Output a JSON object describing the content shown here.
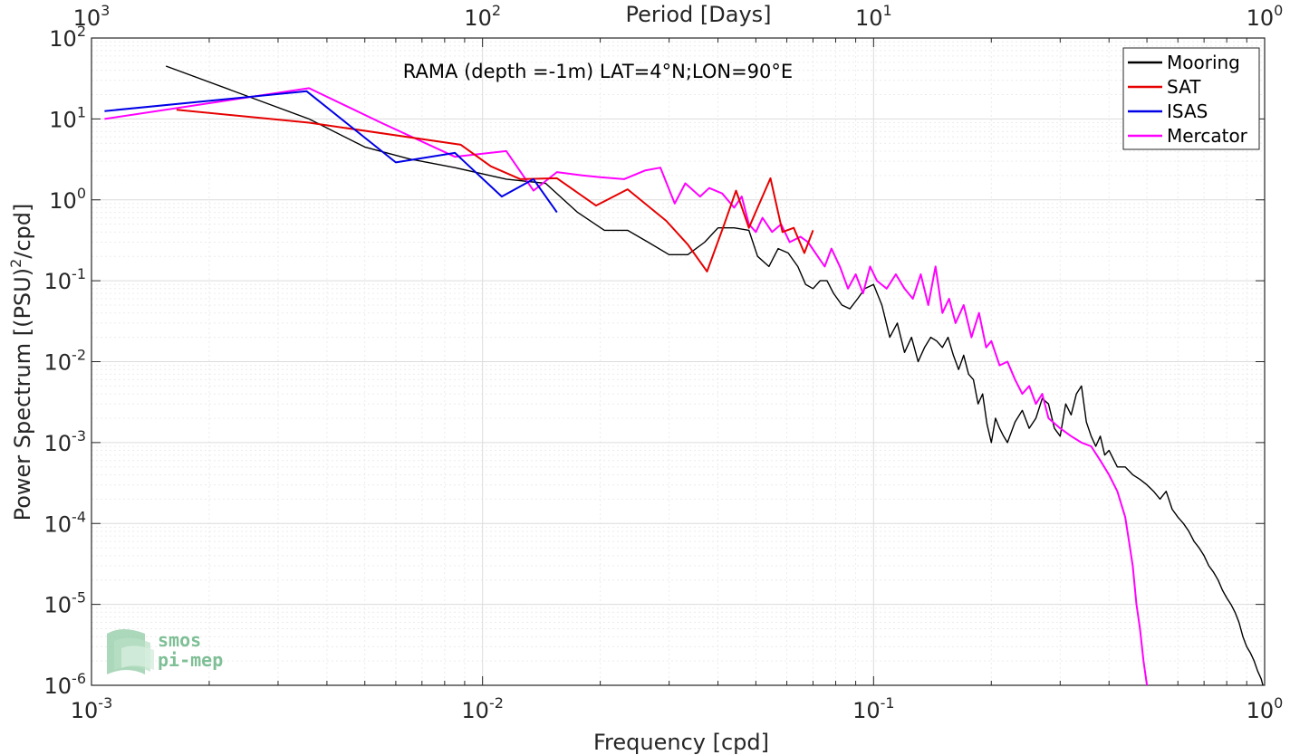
{
  "chart_data": {
    "type": "line",
    "title": "RAMA (depth =-1m) LAT=4°N;LON=90°E",
    "xlabel": "Frequency [cpd]",
    "ylabel": "Power Spectrum [(PSU)²/cpd]",
    "top_xlabel": "Period [Days]",
    "xscale": "log",
    "yscale": "log",
    "xlim": [
      0.001,
      1
    ],
    "ylim": [
      1e-06,
      100
    ],
    "grid": true,
    "legend_position": "top-right",
    "x_tick_labels": [
      {
        "base": "10",
        "exp": "-3"
      },
      {
        "base": "10",
        "exp": "-2"
      },
      {
        "base": "10",
        "exp": "-1"
      },
      {
        "base": "10",
        "exp": "0"
      }
    ],
    "top_tick_labels": [
      {
        "base": "10",
        "exp": "3"
      },
      {
        "base": "10",
        "exp": "2"
      },
      {
        "base": "10",
        "exp": "1"
      },
      {
        "base": "10",
        "exp": "0"
      }
    ],
    "y_tick_labels": [
      {
        "base": "10",
        "exp": "-6"
      },
      {
        "base": "10",
        "exp": "-5"
      },
      {
        "base": "10",
        "exp": "-4"
      },
      {
        "base": "10",
        "exp": "-3"
      },
      {
        "base": "10",
        "exp": "-2"
      },
      {
        "base": "10",
        "exp": "-1"
      },
      {
        "base": "10",
        "exp": "0"
      },
      {
        "base": "10",
        "exp": "1"
      },
      {
        "base": "10",
        "exp": "2"
      }
    ],
    "series": [
      {
        "name": "Mooring",
        "color": "#000000",
        "points": [
          [
            0.00155,
            45
          ],
          [
            0.0036,
            10
          ],
          [
            0.005,
            4.5
          ],
          [
            0.0065,
            3.2
          ],
          [
            0.0085,
            2.5
          ],
          [
            0.0115,
            1.8
          ],
          [
            0.0145,
            1.6
          ],
          [
            0.0175,
            0.7
          ],
          [
            0.0205,
            0.42
          ],
          [
            0.0235,
            0.42
          ],
          [
            0.0265,
            0.3
          ],
          [
            0.03,
            0.21
          ],
          [
            0.0335,
            0.21
          ],
          [
            0.037,
            0.3
          ],
          [
            0.04,
            0.45
          ],
          [
            0.044,
            0.45
          ],
          [
            0.048,
            0.42
          ],
          [
            0.0505,
            0.2
          ],
          [
            0.054,
            0.15
          ],
          [
            0.057,
            0.25
          ],
          [
            0.0605,
            0.22
          ],
          [
            0.064,
            0.15
          ],
          [
            0.067,
            0.09
          ],
          [
            0.07,
            0.08
          ],
          [
            0.073,
            0.1
          ],
          [
            0.076,
            0.1
          ],
          [
            0.079,
            0.07
          ],
          [
            0.083,
            0.05
          ],
          [
            0.087,
            0.045
          ],
          [
            0.091,
            0.06
          ],
          [
            0.095,
            0.08
          ],
          [
            0.1,
            0.09
          ],
          [
            0.105,
            0.05
          ],
          [
            0.11,
            0.02
          ],
          [
            0.115,
            0.03
          ],
          [
            0.12,
            0.013
          ],
          [
            0.125,
            0.02
          ],
          [
            0.13,
            0.01
          ],
          [
            0.135,
            0.015
          ],
          [
            0.14,
            0.02
          ],
          [
            0.145,
            0.018
          ],
          [
            0.15,
            0.015
          ],
          [
            0.155,
            0.02
          ],
          [
            0.16,
            0.012
          ],
          [
            0.165,
            0.008
          ],
          [
            0.17,
            0.012
          ],
          [
            0.175,
            0.007
          ],
          [
            0.18,
            0.006
          ],
          [
            0.185,
            0.003
          ],
          [
            0.19,
            0.004
          ],
          [
            0.195,
            0.0017
          ],
          [
            0.2,
            0.001
          ],
          [
            0.205,
            0.002
          ],
          [
            0.21,
            0.0015
          ],
          [
            0.215,
            0.0012
          ],
          [
            0.22,
            0.001
          ],
          [
            0.23,
            0.0018
          ],
          [
            0.24,
            0.0025
          ],
          [
            0.25,
            0.0015
          ],
          [
            0.26,
            0.002
          ],
          [
            0.27,
            0.0035
          ],
          [
            0.28,
            0.003
          ],
          [
            0.29,
            0.0015
          ],
          [
            0.3,
            0.0012
          ],
          [
            0.31,
            0.003
          ],
          [
            0.32,
            0.0022
          ],
          [
            0.33,
            0.004
          ],
          [
            0.34,
            0.005
          ],
          [
            0.35,
            0.0018
          ],
          [
            0.36,
            0.0012
          ],
          [
            0.37,
            0.0009
          ],
          [
            0.38,
            0.0012
          ],
          [
            0.39,
            0.0007
          ],
          [
            0.4,
            0.0008
          ],
          [
            0.42,
            0.0005
          ],
          [
            0.44,
            0.0005
          ],
          [
            0.46,
            0.0004
          ],
          [
            0.48,
            0.00035
          ],
          [
            0.5,
            0.0003
          ],
          [
            0.52,
            0.00025
          ],
          [
            0.54,
            0.0002
          ],
          [
            0.56,
            0.00025
          ],
          [
            0.58,
            0.00015
          ],
          [
            0.6,
            0.00012
          ],
          [
            0.62,
            0.0001
          ],
          [
            0.64,
            8e-05
          ],
          [
            0.66,
            6e-05
          ],
          [
            0.68,
            5e-05
          ],
          [
            0.7,
            4e-05
          ],
          [
            0.72,
            3e-05
          ],
          [
            0.74,
            2.5e-05
          ],
          [
            0.76,
            2e-05
          ],
          [
            0.78,
            1.5e-05
          ],
          [
            0.8,
            1.2e-05
          ],
          [
            0.82,
            1e-05
          ],
          [
            0.84,
            8e-06
          ],
          [
            0.86,
            6e-06
          ],
          [
            0.88,
            4e-06
          ],
          [
            0.9,
            3e-06
          ],
          [
            0.92,
            2.5e-06
          ],
          [
            0.94,
            2e-06
          ],
          [
            0.96,
            1.5e-06
          ],
          [
            0.98,
            1.2e-06
          ],
          [
            0.99,
            1e-06
          ]
        ]
      },
      {
        "name": "SAT",
        "color": "#e60000",
        "points": [
          [
            0.00165,
            13
          ],
          [
            0.0036,
            9
          ],
          [
            0.0088,
            4.8
          ],
          [
            0.0105,
            2.6
          ],
          [
            0.0125,
            1.8
          ],
          [
            0.0155,
            1.85
          ],
          [
            0.0195,
            0.85
          ],
          [
            0.0235,
            1.35
          ],
          [
            0.0295,
            0.55
          ],
          [
            0.0335,
            0.28
          ],
          [
            0.0375,
            0.13
          ],
          [
            0.0415,
            0.5
          ],
          [
            0.0445,
            1.3
          ],
          [
            0.048,
            0.45
          ],
          [
            0.0505,
            0.8
          ],
          [
            0.0545,
            1.85
          ],
          [
            0.0585,
            0.4
          ],
          [
            0.0625,
            0.45
          ],
          [
            0.0665,
            0.22
          ],
          [
            0.07,
            0.42
          ]
        ]
      },
      {
        "name": "ISAS",
        "color": "#0000e6",
        "points": [
          [
            0.00108,
            12.5
          ],
          [
            0.00355,
            22
          ],
          [
            0.006,
            2.9
          ],
          [
            0.0085,
            3.8
          ],
          [
            0.0112,
            1.1
          ],
          [
            0.0135,
            1.8
          ],
          [
            0.0155,
            0.7
          ]
        ]
      },
      {
        "name": "Mercator",
        "color": "#ff00ff",
        "points": [
          [
            0.00108,
            10
          ],
          [
            0.0036,
            24
          ],
          [
            0.0055,
            9
          ],
          [
            0.0085,
            3.4
          ],
          [
            0.0115,
            4
          ],
          [
            0.0135,
            1.3
          ],
          [
            0.0155,
            2.2
          ],
          [
            0.018,
            2
          ],
          [
            0.02,
            1.9
          ],
          [
            0.023,
            1.8
          ],
          [
            0.026,
            2.3
          ],
          [
            0.0285,
            2.5
          ],
          [
            0.031,
            0.9
          ],
          [
            0.033,
            1.6
          ],
          [
            0.036,
            1.1
          ],
          [
            0.038,
            1.4
          ],
          [
            0.041,
            1.2
          ],
          [
            0.044,
            0.8
          ],
          [
            0.046,
            1.1
          ],
          [
            0.048,
            0.5
          ],
          [
            0.05,
            0.4
          ],
          [
            0.052,
            0.6
          ],
          [
            0.055,
            0.4
          ],
          [
            0.058,
            0.5
          ],
          [
            0.061,
            0.3
          ],
          [
            0.065,
            0.35
          ],
          [
            0.068,
            0.3
          ],
          [
            0.072,
            0.2
          ],
          [
            0.075,
            0.15
          ],
          [
            0.078,
            0.25
          ],
          [
            0.082,
            0.15
          ],
          [
            0.086,
            0.08
          ],
          [
            0.09,
            0.12
          ],
          [
            0.094,
            0.07
          ],
          [
            0.098,
            0.15
          ],
          [
            0.102,
            0.1
          ],
          [
            0.108,
            0.08
          ],
          [
            0.114,
            0.12
          ],
          [
            0.12,
            0.08
          ],
          [
            0.126,
            0.06
          ],
          [
            0.132,
            0.12
          ],
          [
            0.138,
            0.05
          ],
          [
            0.144,
            0.15
          ],
          [
            0.15,
            0.04
          ],
          [
            0.156,
            0.06
          ],
          [
            0.162,
            0.03
          ],
          [
            0.17,
            0.05
          ],
          [
            0.178,
            0.02
          ],
          [
            0.186,
            0.04
          ],
          [
            0.194,
            0.015
          ],
          [
            0.2,
            0.018
          ],
          [
            0.21,
            0.009
          ],
          [
            0.22,
            0.01
          ],
          [
            0.23,
            0.006
          ],
          [
            0.24,
            0.004
          ],
          [
            0.25,
            0.005
          ],
          [
            0.26,
            0.003
          ],
          [
            0.27,
            0.004
          ],
          [
            0.28,
            0.002
          ],
          [
            0.3,
            0.0015
          ],
          [
            0.32,
            0.0012
          ],
          [
            0.34,
            0.001
          ],
          [
            0.36,
            0.0009
          ],
          [
            0.38,
            0.0006
          ],
          [
            0.4,
            0.0004
          ],
          [
            0.42,
            0.00025
          ],
          [
            0.44,
            0.00012
          ],
          [
            0.45,
            6e-05
          ],
          [
            0.46,
            3e-05
          ],
          [
            0.47,
            1e-05
          ],
          [
            0.48,
            5e-06
          ],
          [
            0.49,
            2e-06
          ],
          [
            0.5,
            1e-06
          ]
        ]
      }
    ]
  },
  "logo": {
    "line1": "smos",
    "line2": "pi-mep"
  }
}
